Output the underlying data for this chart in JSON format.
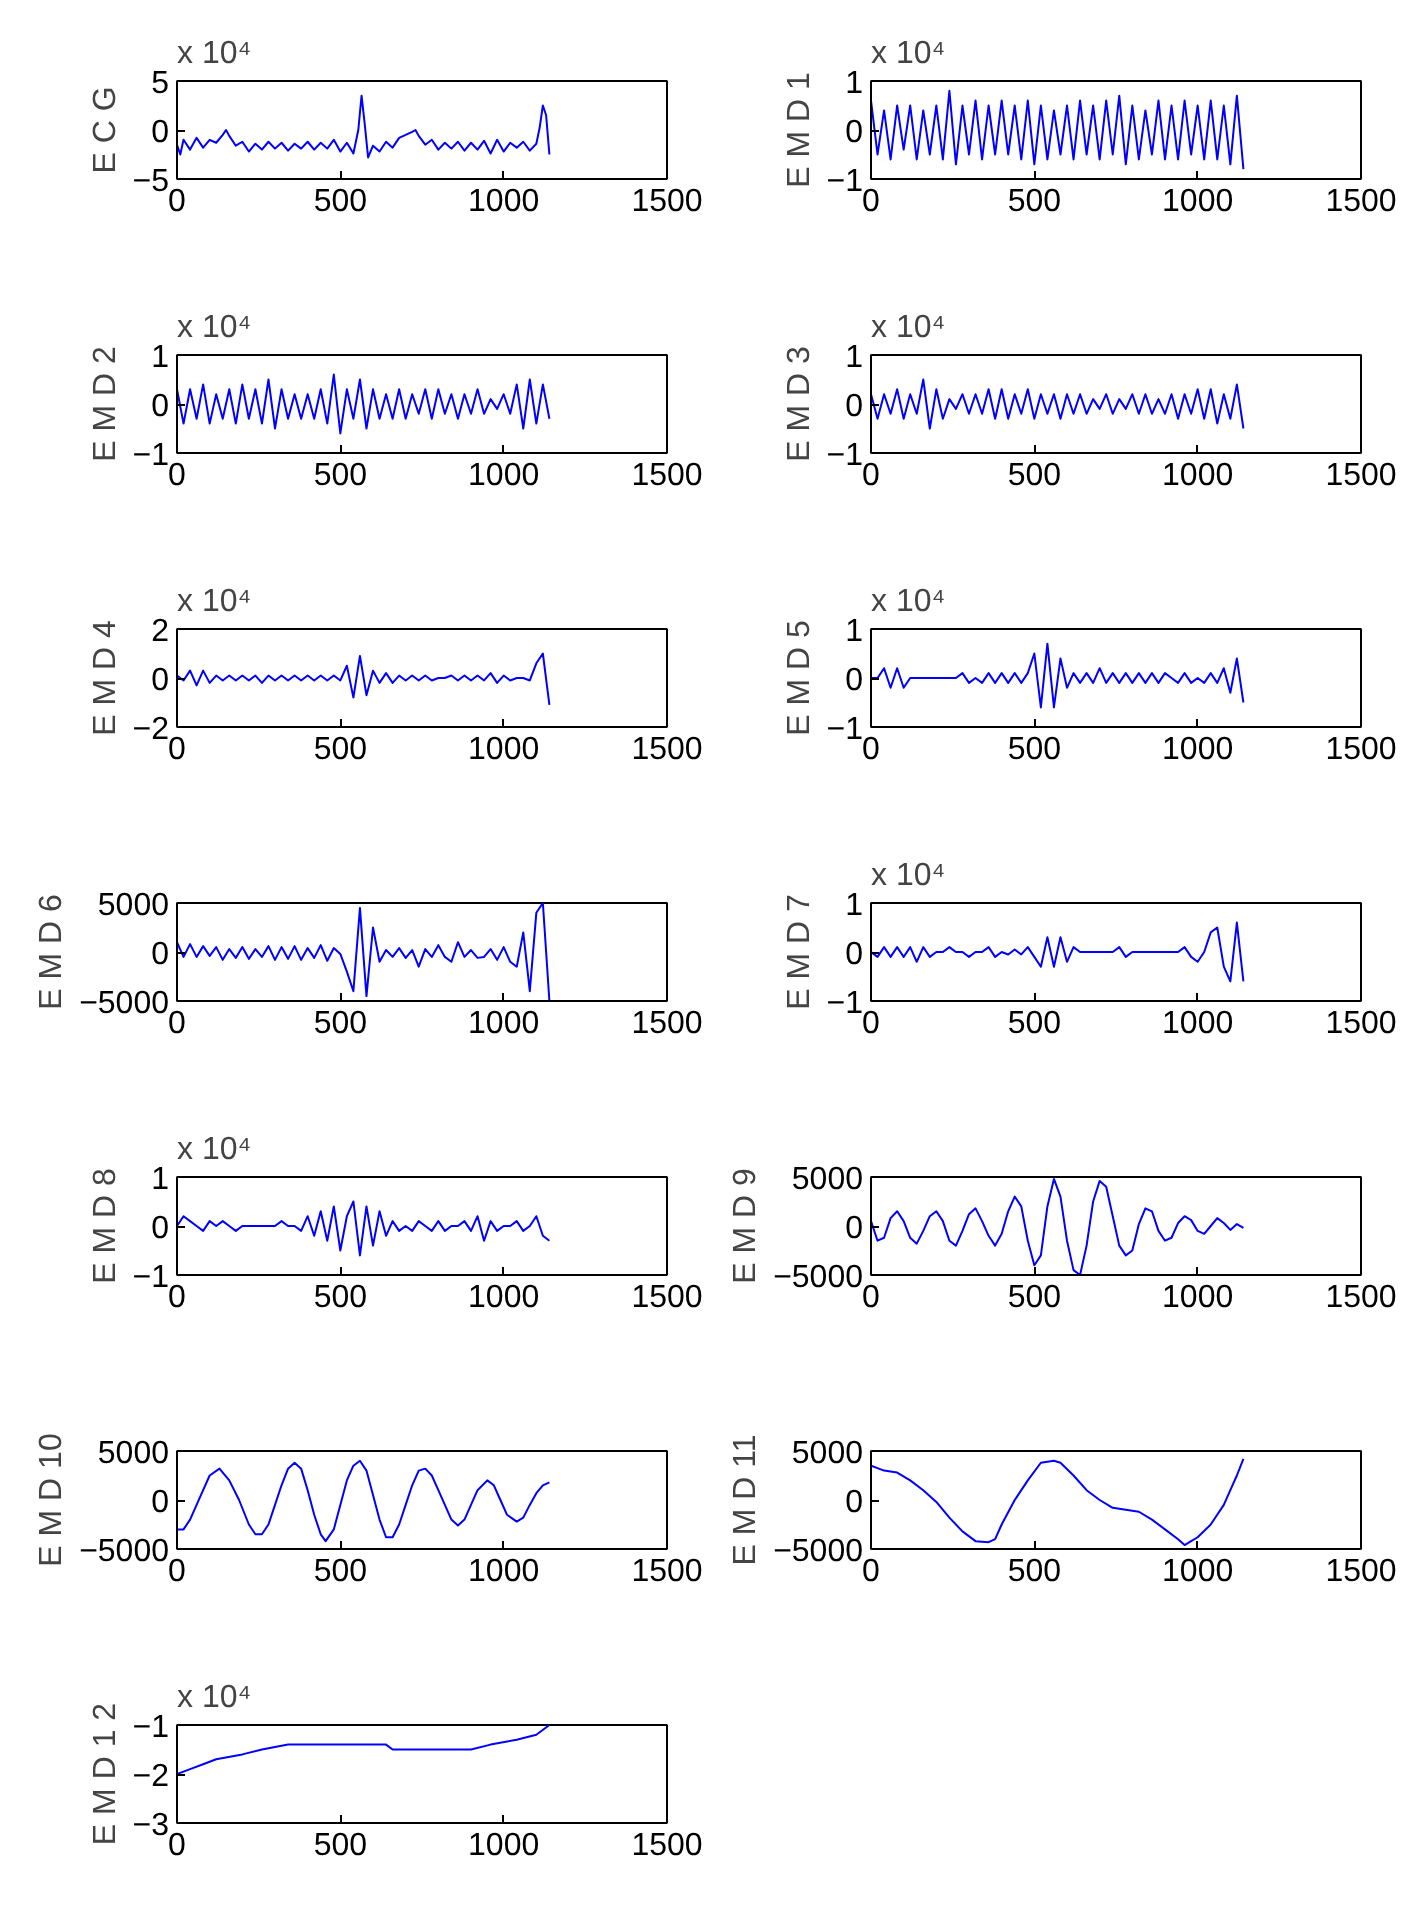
{
  "chart_data": [
    {
      "type": "line",
      "ylabel": "E C G",
      "annotations": [
        "x 10⁴"
      ],
      "color": "#0000ff",
      "grid": false,
      "xlim": [
        0,
        1500
      ],
      "xticks": [
        0,
        500,
        1000,
        1500
      ],
      "ylim": [
        -5,
        5
      ],
      "yticks": [
        -5,
        0,
        5
      ],
      "x": [
        0,
        10,
        20,
        40,
        60,
        80,
        100,
        120,
        140,
        150,
        160,
        180,
        200,
        220,
        240,
        260,
        280,
        300,
        320,
        340,
        360,
        380,
        400,
        420,
        440,
        460,
        480,
        500,
        520,
        540,
        555,
        565,
        575,
        585,
        600,
        620,
        640,
        660,
        680,
        700,
        720,
        730,
        740,
        760,
        780,
        800,
        820,
        840,
        860,
        880,
        900,
        920,
        940,
        960,
        980,
        1000,
        1020,
        1040,
        1060,
        1080,
        1100,
        1110,
        1120,
        1130,
        1140
      ],
      "values": [
        -1.5,
        -2.5,
        -1,
        -2,
        -0.8,
        -1.8,
        -1,
        -1.3,
        -0.5,
        0,
        -0.6,
        -1.6,
        -1.2,
        -2.2,
        -1.4,
        -2,
        -1.2,
        -1.9,
        -1.3,
        -2.1,
        -1.4,
        -1.9,
        -1.2,
        -2,
        -1.3,
        -1.9,
        -1,
        -2.2,
        -1.3,
        -2.4,
        0,
        3.5,
        0.5,
        -2.8,
        -1.6,
        -2.2,
        -1.2,
        -1.8,
        -0.8,
        -0.5,
        -0.2,
        0,
        -0.6,
        -1.5,
        -1,
        -2,
        -1.3,
        -1.9,
        -1.2,
        -2.1,
        -1.3,
        -2,
        -1.1,
        -2.4,
        -1,
        -2.2,
        -1.3,
        -1.8,
        -1.2,
        -2.1,
        -1.4,
        0.2,
        2.5,
        1.5,
        -2.5
      ]
    },
    {
      "type": "line",
      "ylabel": "E M D 1",
      "annotations": [
        "x 10⁴"
      ],
      "color": "#0000ff",
      "grid": false,
      "xlim": [
        0,
        1500
      ],
      "xticks": [
        0,
        500,
        1000,
        1500
      ],
      "ylim": [
        -1,
        1
      ],
      "yticks": [
        -1,
        0,
        1
      ],
      "x": [
        0,
        20,
        40,
        60,
        80,
        100,
        120,
        140,
        160,
        180,
        200,
        220,
        240,
        260,
        280,
        300,
        320,
        340,
        360,
        380,
        400,
        420,
        440,
        460,
        480,
        500,
        520,
        540,
        560,
        580,
        600,
        620,
        640,
        660,
        680,
        700,
        720,
        740,
        760,
        780,
        800,
        820,
        840,
        860,
        880,
        900,
        920,
        940,
        960,
        980,
        1000,
        1020,
        1040,
        1060,
        1080,
        1100,
        1120,
        1140
      ],
      "values": [
        0.6,
        -0.5,
        0.4,
        -0.6,
        0.5,
        -0.4,
        0.5,
        -0.6,
        0.4,
        -0.5,
        0.5,
        -0.6,
        0.8,
        -0.7,
        0.5,
        -0.5,
        0.6,
        -0.6,
        0.5,
        -0.5,
        0.6,
        -0.5,
        0.5,
        -0.6,
        0.6,
        -0.7,
        0.5,
        -0.6,
        0.4,
        -0.5,
        0.5,
        -0.6,
        0.6,
        -0.5,
        0.5,
        -0.6,
        0.6,
        -0.5,
        0.7,
        -0.7,
        0.5,
        -0.6,
        0.4,
        -0.5,
        0.6,
        -0.6,
        0.5,
        -0.6,
        0.6,
        -0.5,
        0.5,
        -0.6,
        0.6,
        -0.6,
        0.5,
        -0.7,
        0.7,
        -0.8
      ]
    },
    {
      "type": "line",
      "ylabel": "E M D 2",
      "annotations": [
        "x 10⁴"
      ],
      "color": "#0000ff",
      "grid": false,
      "xlim": [
        0,
        1500
      ],
      "xticks": [
        0,
        500,
        1000,
        1500
      ],
      "ylim": [
        -1,
        1
      ],
      "yticks": [
        -1,
        0,
        1
      ],
      "x": [
        0,
        20,
        40,
        60,
        80,
        100,
        120,
        140,
        160,
        180,
        200,
        220,
        240,
        260,
        280,
        300,
        320,
        340,
        360,
        380,
        400,
        420,
        440,
        460,
        480,
        500,
        520,
        540,
        560,
        580,
        600,
        620,
        640,
        660,
        680,
        700,
        720,
        740,
        760,
        780,
        800,
        820,
        840,
        860,
        880,
        900,
        920,
        940,
        960,
        980,
        1000,
        1020,
        1040,
        1060,
        1080,
        1100,
        1120,
        1140
      ],
      "values": [
        0.3,
        -0.4,
        0.3,
        -0.3,
        0.4,
        -0.4,
        0.2,
        -0.3,
        0.3,
        -0.4,
        0.4,
        -0.3,
        0.3,
        -0.4,
        0.5,
        -0.5,
        0.3,
        -0.3,
        0.2,
        -0.3,
        0.2,
        -0.3,
        0.3,
        -0.4,
        0.6,
        -0.6,
        0.3,
        -0.3,
        0.5,
        -0.5,
        0.3,
        -0.3,
        0.2,
        -0.3,
        0.3,
        -0.3,
        0.2,
        -0.2,
        0.3,
        -0.3,
        0.3,
        -0.2,
        0.2,
        -0.3,
        0.2,
        -0.2,
        0.3,
        -0.2,
        0.1,
        -0.1,
        0.2,
        -0.2,
        0.4,
        -0.5,
        0.5,
        -0.4,
        0.4,
        -0.3
      ]
    },
    {
      "type": "line",
      "ylabel": "E M D 3",
      "annotations": [
        "x 10⁴"
      ],
      "color": "#0000ff",
      "grid": false,
      "xlim": [
        0,
        1500
      ],
      "xticks": [
        0,
        500,
        1000,
        1500
      ],
      "ylim": [
        -1,
        1
      ],
      "yticks": [
        -1,
        0,
        1
      ],
      "x": [
        0,
        20,
        40,
        60,
        80,
        100,
        120,
        140,
        160,
        180,
        200,
        220,
        240,
        260,
        280,
        300,
        320,
        340,
        360,
        380,
        400,
        420,
        440,
        460,
        480,
        500,
        520,
        540,
        560,
        580,
        600,
        620,
        640,
        660,
        680,
        700,
        720,
        740,
        760,
        780,
        800,
        820,
        840,
        860,
        880,
        900,
        920,
        940,
        960,
        980,
        1000,
        1020,
        1040,
        1060,
        1080,
        1100,
        1120,
        1140
      ],
      "values": [
        0.2,
        -0.3,
        0.2,
        -0.2,
        0.3,
        -0.3,
        0.2,
        -0.2,
        0.5,
        -0.5,
        0.3,
        -0.3,
        0.1,
        -0.1,
        0.2,
        -0.2,
        0.2,
        -0.2,
        0.3,
        -0.3,
        0.3,
        -0.3,
        0.2,
        -0.2,
        0.3,
        -0.3,
        0.2,
        -0.2,
        0.2,
        -0.3,
        0.2,
        -0.2,
        0.2,
        -0.2,
        0.1,
        -0.1,
        0.2,
        -0.2,
        0.1,
        -0.1,
        0.2,
        -0.2,
        0.2,
        -0.2,
        0.1,
        -0.2,
        0.2,
        -0.3,
        0.2,
        -0.2,
        0.3,
        -0.3,
        0.3,
        -0.4,
        0.2,
        -0.3,
        0.4,
        -0.5
      ]
    },
    {
      "type": "line",
      "ylabel": "E M D 4",
      "annotations": [
        "x 10⁴"
      ],
      "color": "#0000ff",
      "grid": false,
      "xlim": [
        0,
        1500
      ],
      "xticks": [
        0,
        500,
        1000,
        1500
      ],
      "ylim": [
        -2,
        2
      ],
      "yticks": [
        -2,
        0,
        2
      ],
      "x": [
        0,
        20,
        40,
        60,
        80,
        100,
        120,
        140,
        160,
        180,
        200,
        220,
        240,
        260,
        280,
        300,
        320,
        340,
        360,
        380,
        400,
        420,
        440,
        460,
        480,
        500,
        520,
        540,
        560,
        580,
        600,
        620,
        640,
        660,
        680,
        700,
        720,
        740,
        760,
        780,
        800,
        820,
        840,
        860,
        880,
        900,
        920,
        940,
        960,
        980,
        1000,
        1020,
        1040,
        1060,
        1080,
        1100,
        1120,
        1140
      ],
      "values": [
        0.1,
        -0.1,
        0.3,
        -0.3,
        0.3,
        -0.2,
        0.1,
        -0.1,
        0.1,
        -0.1,
        0.1,
        -0.1,
        0.1,
        -0.2,
        0.1,
        -0.1,
        0.1,
        -0.1,
        0.1,
        -0.1,
        0.1,
        -0.1,
        0.1,
        -0.1,
        0.1,
        -0.1,
        0.5,
        -0.8,
        0.9,
        -0.7,
        0.3,
        -0.2,
        0.2,
        -0.2,
        0.1,
        -0.1,
        0.1,
        -0.1,
        0.1,
        -0.1,
        0,
        0,
        0.1,
        -0.1,
        0.1,
        -0.1,
        0.1,
        -0.1,
        0.2,
        -0.2,
        0.1,
        -0.1,
        0,
        0,
        -0.1,
        0.6,
        1.0,
        -1.1
      ]
    },
    {
      "type": "line",
      "ylabel": "E M D 5",
      "annotations": [
        "x 10⁴"
      ],
      "color": "#0000ff",
      "grid": false,
      "xlim": [
        0,
        1500
      ],
      "xticks": [
        0,
        500,
        1000,
        1500
      ],
      "ylim": [
        -1,
        1
      ],
      "yticks": [
        -1,
        0,
        1
      ],
      "x": [
        0,
        20,
        40,
        60,
        80,
        100,
        120,
        140,
        160,
        180,
        200,
        220,
        240,
        260,
        280,
        300,
        320,
        340,
        360,
        380,
        400,
        420,
        440,
        460,
        480,
        500,
        520,
        540,
        560,
        580,
        600,
        620,
        640,
        660,
        680,
        700,
        720,
        740,
        760,
        780,
        800,
        820,
        840,
        860,
        880,
        900,
        920,
        940,
        960,
        980,
        1000,
        1020,
        1040,
        1060,
        1080,
        1100,
        1120,
        1140
      ],
      "values": [
        0,
        0,
        0.2,
        -0.2,
        0.2,
        -0.2,
        0,
        0,
        0,
        0,
        0,
        0,
        0,
        0,
        0.1,
        -0.1,
        0,
        -0.1,
        0.1,
        -0.1,
        0.1,
        -0.1,
        0.1,
        -0.1,
        0.1,
        0.5,
        -0.6,
        0.7,
        -0.6,
        0.4,
        -0.2,
        0.1,
        -0.1,
        0.1,
        -0.1,
        0.2,
        -0.1,
        0.1,
        -0.1,
        0.1,
        -0.1,
        0.1,
        -0.1,
        0.1,
        -0.1,
        0.1,
        0,
        -0.1,
        0.1,
        -0.1,
        0,
        -0.1,
        0.1,
        -0.1,
        0.2,
        -0.3,
        0.4,
        -0.5
      ]
    },
    {
      "type": "line",
      "ylabel": "E M D 6",
      "color": "#0000ff",
      "grid": false,
      "xlim": [
        0,
        1500
      ],
      "xticks": [
        0,
        500,
        1000,
        1500
      ],
      "ylim": [
        -5000,
        5000
      ],
      "yticks": [
        -5000,
        0,
        5000
      ],
      "x": [
        0,
        20,
        40,
        60,
        80,
        100,
        120,
        140,
        160,
        180,
        200,
        220,
        240,
        260,
        280,
        300,
        320,
        340,
        360,
        380,
        400,
        420,
        440,
        460,
        480,
        500,
        520,
        540,
        560,
        580,
        600,
        620,
        640,
        660,
        680,
        700,
        720,
        740,
        760,
        780,
        800,
        820,
        840,
        860,
        880,
        900,
        920,
        940,
        960,
        980,
        1000,
        1020,
        1040,
        1060,
        1080,
        1100,
        1120,
        1140
      ],
      "values": [
        1000,
        -500,
        800,
        -500,
        600,
        -400,
        500,
        -800,
        300,
        -600,
        500,
        -700,
        300,
        -500,
        600,
        -800,
        500,
        -700,
        600,
        -800,
        400,
        -600,
        700,
        -900,
        400,
        -200,
        -2000,
        -4000,
        4500,
        -4500,
        2500,
        -1000,
        200,
        -500,
        400,
        -600,
        200,
        -1500,
        300,
        -500,
        700,
        -500,
        -1000,
        1000,
        -500,
        200,
        -600,
        -500,
        300,
        -800,
        500,
        -1000,
        -1500,
        2000,
        -4000,
        4000,
        5000,
        -5000
      ]
    },
    {
      "type": "line",
      "ylabel": "E M D 7",
      "annotations": [
        "x 10⁴"
      ],
      "color": "#0000ff",
      "grid": false,
      "xlim": [
        0,
        1500
      ],
      "xticks": [
        0,
        500,
        1000,
        1500
      ],
      "ylim": [
        -1,
        1
      ],
      "yticks": [
        -1,
        0,
        1
      ],
      "x": [
        0,
        20,
        40,
        60,
        80,
        100,
        120,
        140,
        160,
        180,
        200,
        220,
        240,
        260,
        280,
        300,
        320,
        340,
        360,
        380,
        400,
        420,
        440,
        460,
        480,
        500,
        520,
        540,
        560,
        580,
        600,
        620,
        640,
        660,
        680,
        700,
        720,
        740,
        760,
        780,
        800,
        820,
        840,
        860,
        880,
        900,
        920,
        940,
        960,
        980,
        1000,
        1020,
        1040,
        1060,
        1080,
        1100,
        1120,
        1140
      ],
      "values": [
        0,
        -0.1,
        0.1,
        -0.1,
        0.1,
        -0.1,
        0.1,
        -0.2,
        0.1,
        -0.1,
        0,
        0,
        0.1,
        0,
        0,
        -0.1,
        0,
        0,
        0.1,
        -0.1,
        0,
        -0.05,
        0.05,
        -0.05,
        0.1,
        -0.1,
        -0.3,
        0.3,
        -0.3,
        0.3,
        -0.2,
        0.1,
        0,
        0,
        0,
        0,
        0,
        0,
        0.1,
        -0.1,
        0,
        0,
        0,
        0,
        0,
        0,
        0,
        0,
        0.1,
        -0.1,
        -0.2,
        0,
        0.4,
        0.5,
        -0.3,
        -0.6,
        0.6,
        -0.6
      ]
    },
    {
      "type": "line",
      "ylabel": "E M D 8",
      "annotations": [
        "x 10⁴"
      ],
      "color": "#0000ff",
      "grid": false,
      "xlim": [
        0,
        1500
      ],
      "xticks": [
        0,
        500,
        1000,
        1500
      ],
      "ylim": [
        -1,
        1
      ],
      "yticks": [
        -1,
        0,
        1
      ],
      "x": [
        0,
        20,
        40,
        60,
        80,
        100,
        120,
        140,
        160,
        180,
        200,
        220,
        240,
        260,
        280,
        300,
        320,
        340,
        360,
        380,
        400,
        420,
        440,
        460,
        480,
        500,
        520,
        540,
        560,
        580,
        600,
        620,
        640,
        660,
        680,
        700,
        720,
        740,
        760,
        780,
        800,
        820,
        840,
        860,
        880,
        900,
        920,
        940,
        960,
        980,
        1000,
        1020,
        1040,
        1060,
        1080,
        1100,
        1120,
        1140
      ],
      "values": [
        0,
        0.2,
        0.1,
        0,
        -0.1,
        0.1,
        0,
        0.1,
        0,
        -0.1,
        0,
        0,
        0,
        0,
        0,
        0,
        0.1,
        0,
        0,
        -0.1,
        0.2,
        -0.2,
        0.3,
        -0.3,
        0.4,
        -0.5,
        0.2,
        0.5,
        -0.6,
        0.4,
        -0.4,
        0.3,
        -0.2,
        0.1,
        -0.1,
        0,
        -0.1,
        0.1,
        0,
        -0.1,
        0.1,
        -0.1,
        0,
        0,
        0.1,
        -0.1,
        0.2,
        -0.3,
        0.1,
        -0.1,
        0,
        0,
        0.1,
        -0.1,
        0,
        0.2,
        -0.2,
        -0.3
      ]
    },
    {
      "type": "line",
      "ylabel": "E M D 9",
      "color": "#0000ff",
      "grid": false,
      "xlim": [
        0,
        1500
      ],
      "xticks": [
        0,
        500,
        1000,
        1500
      ],
      "ylim": [
        -5000,
        5000
      ],
      "yticks": [
        -5000,
        0,
        5000
      ],
      "x": [
        0,
        20,
        40,
        60,
        80,
        100,
        120,
        140,
        160,
        180,
        200,
        220,
        240,
        260,
        280,
        300,
        320,
        340,
        360,
        380,
        400,
        420,
        440,
        460,
        480,
        500,
        520,
        540,
        560,
        580,
        600,
        620,
        640,
        660,
        680,
        700,
        720,
        740,
        760,
        780,
        800,
        820,
        840,
        860,
        880,
        900,
        920,
        940,
        960,
        980,
        1000,
        1020,
        1040,
        1060,
        1080,
        1100,
        1120,
        1140
      ],
      "values": [
        500,
        -1500,
        -1200,
        800,
        1500,
        500,
        -1200,
        -1800,
        -500,
        1000,
        1500,
        500,
        -1500,
        -2000,
        -500,
        1200,
        1800,
        500,
        -1000,
        -2000,
        -800,
        1500,
        3000,
        2000,
        -1500,
        -4000,
        -3000,
        2000,
        4800,
        3000,
        -1500,
        -4500,
        -5000,
        -2000,
        2500,
        4600,
        4000,
        1000,
        -2000,
        -3000,
        -2500,
        200,
        1800,
        1500,
        -500,
        -1500,
        -1200,
        300,
        1000,
        600,
        -500,
        -800,
        0,
        800,
        300,
        -400,
        200,
        -200
      ]
    },
    {
      "type": "line",
      "ylabel": "E M D 10",
      "color": "#0000ff",
      "grid": false,
      "xlim": [
        0,
        1500
      ],
      "xticks": [
        0,
        500,
        1000,
        1500
      ],
      "ylim": [
        -5000,
        5000
      ],
      "yticks": [
        -5000,
        0,
        5000
      ],
      "x": [
        0,
        20,
        40,
        60,
        80,
        100,
        130,
        160,
        190,
        220,
        240,
        260,
        280,
        300,
        320,
        340,
        360,
        380,
        400,
        420,
        440,
        455,
        480,
        500,
        520,
        540,
        560,
        580,
        600,
        620,
        640,
        660,
        680,
        700,
        720,
        740,
        760,
        780,
        800,
        820,
        840,
        860,
        880,
        900,
        920,
        950,
        970,
        990,
        1010,
        1040,
        1060,
        1080,
        1100,
        1120,
        1140
      ],
      "values": [
        -3000,
        -3000,
        -2000,
        -500,
        1000,
        2500,
        3200,
        2000,
        0,
        -2500,
        -3500,
        -3500,
        -2500,
        -500,
        1500,
        3200,
        3800,
        3200,
        1000,
        -1500,
        -3500,
        -4200,
        -3000,
        -500,
        2000,
        3500,
        4000,
        3000,
        500,
        -2000,
        -3800,
        -3800,
        -2500,
        -500,
        1500,
        3000,
        3200,
        2500,
        1000,
        -500,
        -2000,
        -2600,
        -2000,
        -500,
        1000,
        2000,
        1500,
        0,
        -1500,
        -2200,
        -1800,
        -500,
        700,
        1500,
        1800
      ]
    },
    {
      "type": "line",
      "ylabel": "E M D 11",
      "color": "#0000ff",
      "grid": false,
      "xlim": [
        0,
        1500
      ],
      "xticks": [
        0,
        500,
        1000,
        1500
      ],
      "ylim": [
        -5000,
        5000
      ],
      "yticks": [
        -5000,
        0,
        5000
      ],
      "x": [
        0,
        40,
        80,
        120,
        160,
        200,
        240,
        280,
        320,
        360,
        380,
        400,
        440,
        480,
        520,
        560,
        580,
        620,
        660,
        700,
        740,
        780,
        820,
        860,
        900,
        940,
        960,
        980,
        1000,
        1040,
        1080,
        1100,
        1120,
        1140
      ],
      "values": [
        3500,
        3000,
        2800,
        2000,
        1000,
        -200,
        -1800,
        -3200,
        -4200,
        -4300,
        -4000,
        -2500,
        0,
        2000,
        3800,
        4000,
        3800,
        2500,
        1000,
        0,
        -800,
        -1000,
        -1200,
        -2000,
        -3000,
        -4000,
        -4600,
        -4200,
        -3800,
        -2500,
        -500,
        1000,
        2500,
        4200
      ]
    },
    {
      "type": "line",
      "ylabel": "E M D 1 2",
      "annotations": [
        "x 10⁴"
      ],
      "color": "#0000ff",
      "grid": false,
      "xlim": [
        0,
        1500
      ],
      "xticks": [
        0,
        500,
        1000,
        1500
      ],
      "ylim": [
        -3,
        -1
      ],
      "yticks": [
        -3,
        -2,
        -1
      ],
      "x": [
        0,
        40,
        80,
        120,
        200,
        260,
        340,
        640,
        660,
        900,
        960,
        1040,
        1100,
        1140
      ],
      "values": [
        -2,
        -1.9,
        -1.8,
        -1.7,
        -1.6,
        -1.5,
        -1.4,
        -1.4,
        -1.5,
        -1.5,
        -1.4,
        -1.3,
        -1.2,
        -1.0
      ]
    }
  ]
}
